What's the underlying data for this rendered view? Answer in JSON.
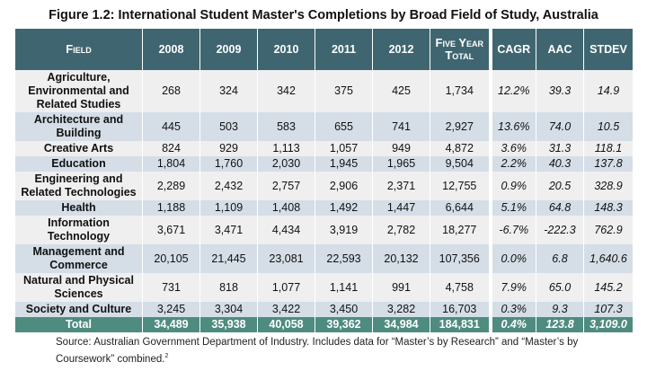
{
  "title": "Figure 1.2: International Student Master's Completions by Broad Field of Study, Australia",
  "headers": [
    "Field",
    "2008",
    "2009",
    "2010",
    "2011",
    "2012",
    "Five Year Total",
    "CAGR",
    "AAC",
    "STDEV"
  ],
  "rows": [
    {
      "field": "Agriculture, Environmental and Related Studies",
      "v": [
        "268",
        "324",
        "342",
        "375",
        "425",
        "1,734",
        "12.2%",
        "39.3",
        "14.9"
      ]
    },
    {
      "field": "Architecture and Building",
      "v": [
        "445",
        "503",
        "583",
        "655",
        "741",
        "2,927",
        "13.6%",
        "74.0",
        "10.5"
      ]
    },
    {
      "field": "Creative Arts",
      "v": [
        "824",
        "929",
        "1,113",
        "1,057",
        "949",
        "4,872",
        "3.6%",
        "31.3",
        "118.1"
      ]
    },
    {
      "field": "Education",
      "v": [
        "1,804",
        "1,760",
        "2,030",
        "1,945",
        "1,965",
        "9,504",
        "2.2%",
        "40.3",
        "137.8"
      ]
    },
    {
      "field": "Engineering and Related Technologies",
      "v": [
        "2,289",
        "2,432",
        "2,757",
        "2,906",
        "2,371",
        "12,755",
        "0.9%",
        "20.5",
        "328.9"
      ]
    },
    {
      "field": "Health",
      "v": [
        "1,188",
        "1,109",
        "1,408",
        "1,492",
        "1,447",
        "6,644",
        "5.1%",
        "64.8",
        "148.3"
      ]
    },
    {
      "field": "Information Technology",
      "v": [
        "3,671",
        "3,471",
        "4,434",
        "3,919",
        "2,782",
        "18,277",
        "-6.7%",
        "-222.3",
        "762.9"
      ]
    },
    {
      "field": "Management and Commerce",
      "v": [
        "20,105",
        "21,445",
        "23,081",
        "22,593",
        "20,132",
        "107,356",
        "0.0%",
        "6.8",
        "1,640.6"
      ]
    },
    {
      "field": "Natural and Physical Sciences",
      "v": [
        "731",
        "818",
        "1,077",
        "1,141",
        "991",
        "4,758",
        "7.9%",
        "65.0",
        "145.2"
      ]
    },
    {
      "field": "Society and Culture",
      "v": [
        "3,245",
        "3,304",
        "3,422",
        "3,450",
        "3,282",
        "16,703",
        "0.3%",
        "9.3",
        "107.3"
      ]
    }
  ],
  "total": {
    "field": "Total",
    "v": [
      "34,489",
      "35,938",
      "40,058",
      "39,362",
      "34,984",
      "184,831",
      "0.4%",
      "123.8",
      "3,109.0"
    ]
  },
  "source": "Source: Australian Government Department of Industry. Includes data for “Master’s by Research” and “Master’s by Coursework” combined.",
  "footnote": "2"
}
